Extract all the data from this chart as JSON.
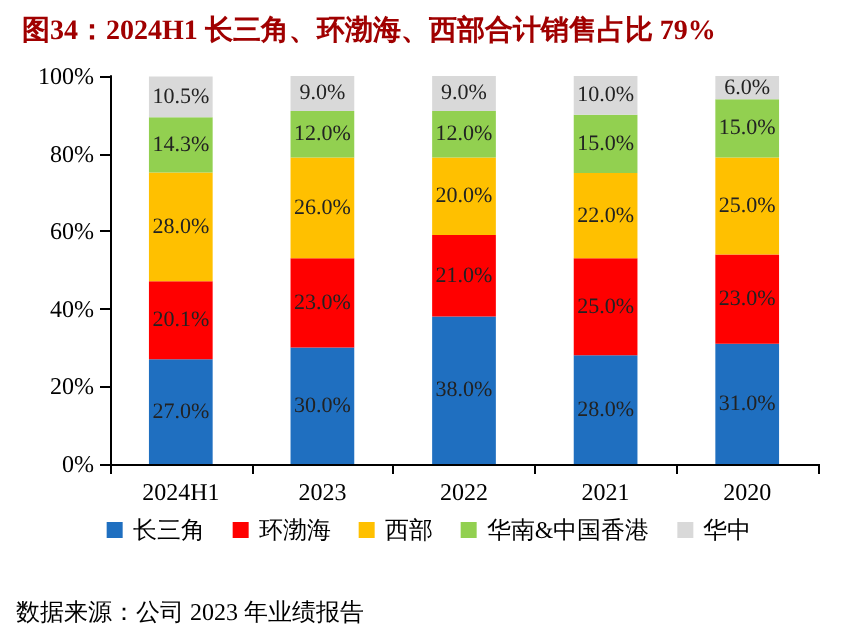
{
  "chart_data": {
    "type": "bar",
    "stacked": true,
    "title": "图34：2024H1 长三角、环渤海、西部合计销售占比 79%",
    "categories": [
      "2024H1",
      "2023",
      "2022",
      "2021",
      "2020"
    ],
    "series": [
      {
        "name": "长三角",
        "color": "#1f6fc0",
        "values": [
          27.0,
          30.0,
          38.0,
          28.0,
          31.0
        ],
        "value_labels": [
          "27.0%",
          "30.0%",
          "38.0%",
          "28.0%",
          "31.0%"
        ]
      },
      {
        "name": "环渤海",
        "color": "#ff0000",
        "values": [
          20.1,
          23.0,
          21.0,
          25.0,
          23.0
        ],
        "value_labels": [
          "20.1%",
          "23.0%",
          "21.0%",
          "25.0%",
          "23.0%"
        ]
      },
      {
        "name": "西部",
        "color": "#ffc000",
        "values": [
          28.0,
          26.0,
          20.0,
          22.0,
          25.0
        ],
        "value_labels": [
          "28.0%",
          "26.0%",
          "20.0%",
          "22.0%",
          "25.0%"
        ]
      },
      {
        "name": "华南&中国香港",
        "color": "#92d050",
        "values": [
          14.3,
          12.0,
          12.0,
          15.0,
          15.0
        ],
        "value_labels": [
          "14.3%",
          "12.0%",
          "12.0%",
          "15.0%",
          "15.0%"
        ]
      },
      {
        "name": "华中",
        "color": "#d9d9d9",
        "values": [
          10.5,
          9.0,
          9.0,
          10.0,
          6.0
        ],
        "value_labels": [
          "10.5%",
          "9.0%",
          "9.0%",
          "10.0%",
          "6.0%"
        ]
      }
    ],
    "ylim": [
      0,
      100
    ],
    "yticks": [
      {
        "value": 0,
        "label": "0%"
      },
      {
        "value": 20,
        "label": "20%"
      },
      {
        "value": 40,
        "label": "40%"
      },
      {
        "value": 60,
        "label": "60%"
      },
      {
        "value": 80,
        "label": "80%"
      },
      {
        "value": 100,
        "label": "100%"
      }
    ],
    "grid": false,
    "legend": "bottom",
    "annotations": [
      "数据来源：公司 2023 年业绩报告"
    ]
  }
}
